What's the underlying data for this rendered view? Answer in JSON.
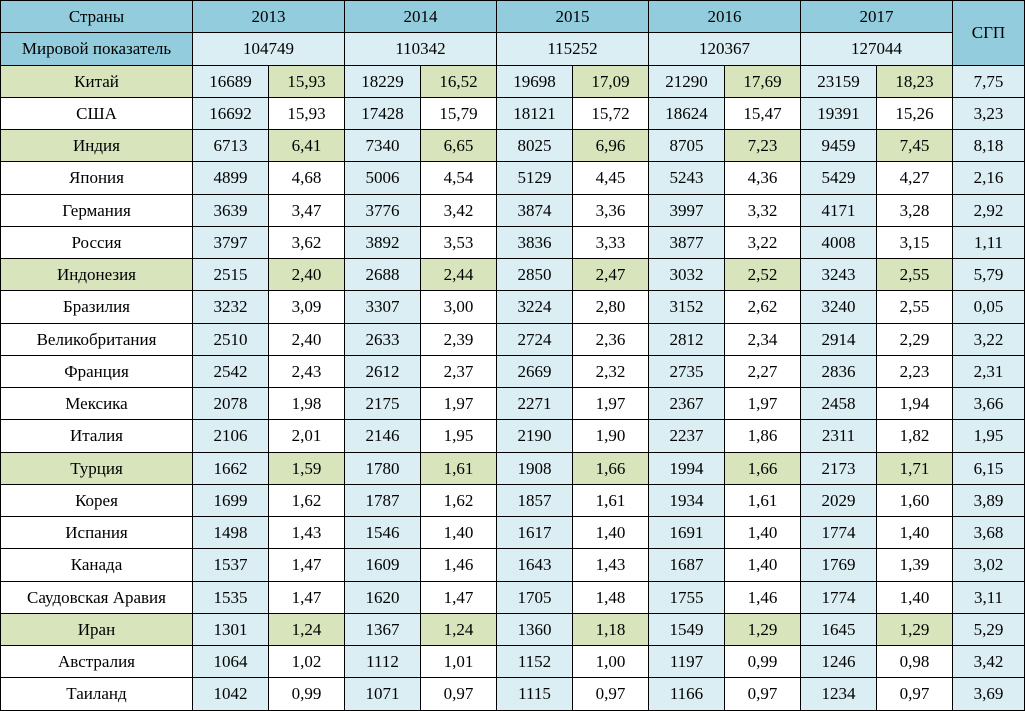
{
  "colors": {
    "header_teal": "#93cddd",
    "cell_blue": "#daeef3",
    "cell_white": "#ffffff",
    "cell_green": "#d8e4bc",
    "border": "#000000",
    "text": "#000000"
  },
  "typography": {
    "font_family": "Times New Roman",
    "font_size_pt": 13
  },
  "layout": {
    "country_col_width": 192,
    "value_col_width": 76,
    "sgp_col_width": 72
  },
  "header": {
    "countries_label": "Страны",
    "world_label": "Мировой показатель",
    "sgp_label": "СГП",
    "years": [
      "2013",
      "2014",
      "2015",
      "2016",
      "2017"
    ],
    "world_values": [
      "104749",
      "110342",
      "115252",
      "120367",
      "127044"
    ]
  },
  "rows": [
    {
      "country": "Китай",
      "highlight": true,
      "cells": [
        "16689",
        "15,93",
        "18229",
        "16,52",
        "19698",
        "17,09",
        "21290",
        "17,69",
        "23159",
        "18,23"
      ],
      "sgp": "7,75"
    },
    {
      "country": "США",
      "highlight": false,
      "cells": [
        "16692",
        "15,93",
        "17428",
        "15,79",
        "18121",
        "15,72",
        "18624",
        "15,47",
        "19391",
        "15,26"
      ],
      "sgp": "3,23"
    },
    {
      "country": "Индия",
      "highlight": true,
      "cells": [
        "6713",
        "6,41",
        "7340",
        "6,65",
        "8025",
        "6,96",
        "8705",
        "7,23",
        "9459",
        "7,45"
      ],
      "sgp": "8,18"
    },
    {
      "country": "Япония",
      "highlight": false,
      "cells": [
        "4899",
        "4,68",
        "5006",
        "4,54",
        "5129",
        "4,45",
        "5243",
        "4,36",
        "5429",
        "4,27"
      ],
      "sgp": "2,16"
    },
    {
      "country": "Германия",
      "highlight": false,
      "cells": [
        "3639",
        "3,47",
        "3776",
        "3,42",
        "3874",
        "3,36",
        "3997",
        "3,32",
        "4171",
        "3,28"
      ],
      "sgp": "2,92"
    },
    {
      "country": "Россия",
      "highlight": false,
      "cells": [
        "3797",
        "3,62",
        "3892",
        "3,53",
        "3836",
        "3,33",
        "3877",
        "3,22",
        "4008",
        "3,15"
      ],
      "sgp": "1,11"
    },
    {
      "country": "Индонезия",
      "highlight": true,
      "cells": [
        "2515",
        "2,40",
        "2688",
        "2,44",
        "2850",
        "2,47",
        "3032",
        "2,52",
        "3243",
        "2,55"
      ],
      "sgp": "5,79"
    },
    {
      "country": "Бразилия",
      "highlight": false,
      "cells": [
        "3232",
        "3,09",
        "3307",
        "3,00",
        "3224",
        "2,80",
        "3152",
        "2,62",
        "3240",
        "2,55"
      ],
      "sgp": "0,05"
    },
    {
      "country": "Великобритания",
      "highlight": false,
      "cells": [
        "2510",
        "2,40",
        "2633",
        "2,39",
        "2724",
        "2,36",
        "2812",
        "2,34",
        "2914",
        "2,29"
      ],
      "sgp": "3,22"
    },
    {
      "country": "Франция",
      "highlight": false,
      "cells": [
        "2542",
        "2,43",
        "2612",
        "2,37",
        "2669",
        "2,32",
        "2735",
        "2,27",
        "2836",
        "2,23"
      ],
      "sgp": "2,31"
    },
    {
      "country": "Мексика",
      "highlight": false,
      "cells": [
        "2078",
        "1,98",
        "2175",
        "1,97",
        "2271",
        "1,97",
        "2367",
        "1,97",
        "2458",
        "1,94"
      ],
      "sgp": "3,66"
    },
    {
      "country": "Италия",
      "highlight": false,
      "cells": [
        "2106",
        "2,01",
        "2146",
        "1,95",
        "2190",
        "1,90",
        "2237",
        "1,86",
        "2311",
        "1,82"
      ],
      "sgp": "1,95"
    },
    {
      "country": "Турция",
      "highlight": true,
      "cells": [
        "1662",
        "1,59",
        "1780",
        "1,61",
        "1908",
        "1,66",
        "1994",
        "1,66",
        "2173",
        "1,71"
      ],
      "sgp": "6,15"
    },
    {
      "country": "Корея",
      "highlight": false,
      "cells": [
        "1699",
        "1,62",
        "1787",
        "1,62",
        "1857",
        "1,61",
        "1934",
        "1,61",
        "2029",
        "1,60"
      ],
      "sgp": "3,89"
    },
    {
      "country": "Испания",
      "highlight": false,
      "cells": [
        "1498",
        "1,43",
        "1546",
        "1,40",
        "1617",
        "1,40",
        "1691",
        "1,40",
        "1774",
        "1,40"
      ],
      "sgp": "3,68"
    },
    {
      "country": "Канада",
      "highlight": false,
      "cells": [
        "1537",
        "1,47",
        "1609",
        "1,46",
        "1643",
        "1,43",
        "1687",
        "1,40",
        "1769",
        "1,39"
      ],
      "sgp": "3,02"
    },
    {
      "country": "Саудовская Аравия",
      "highlight": false,
      "cells": [
        "1535",
        "1,47",
        "1620",
        "1,47",
        "1705",
        "1,48",
        "1755",
        "1,46",
        "1774",
        "1,40"
      ],
      "sgp": "3,11"
    },
    {
      "country": "Иран",
      "highlight": true,
      "cells": [
        "1301",
        "1,24",
        "1367",
        "1,24",
        "1360",
        "1,18",
        "1549",
        "1,29",
        "1645",
        "1,29"
      ],
      "sgp": "5,29"
    },
    {
      "country": "Австралия",
      "highlight": false,
      "cells": [
        "1064",
        "1,02",
        "1112",
        "1,01",
        "1152",
        "1,00",
        "1197",
        "0,99",
        "1246",
        "0,98"
      ],
      "sgp": "3,42"
    },
    {
      "country": "Таиланд",
      "highlight": false,
      "cells": [
        "1042",
        "0,99",
        "1071",
        "0,97",
        "1115",
        "0,97",
        "1166",
        "0,97",
        "1234",
        "0,97"
      ],
      "sgp": "3,69"
    }
  ]
}
